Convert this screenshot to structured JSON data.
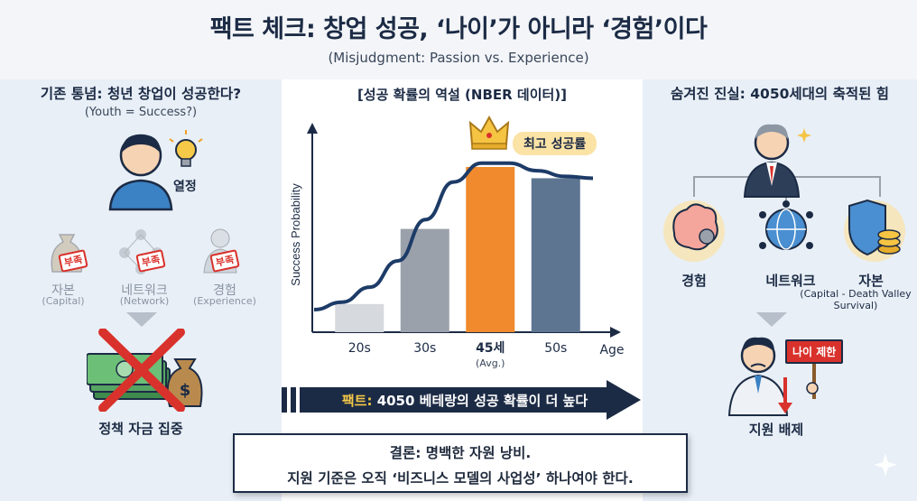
{
  "title": "팩트 체크: 창업 성공, ‘나이’가 아니라 ‘경험’이다",
  "subtitle": "(Misjudgment: Passion vs. Experience)",
  "left": {
    "heading": "기존 통념: 청년 창업이 성공한다?",
    "subheading": "(Youth = Success?)",
    "passion_label": "열정",
    "missing_items": [
      {
        "label": "자본",
        "sub": "(Capital)",
        "badge": "부족"
      },
      {
        "label": "네트워크",
        "sub": "(Network)",
        "badge": "부족"
      },
      {
        "label": "경험",
        "sub": "(Experience)",
        "badge": "부족"
      }
    ],
    "result_label": "정책 자금 집중"
  },
  "chart_data": {
    "type": "bar",
    "title": "[성공 확률의 역설 (NBER 데이터)]",
    "ylabel": "Success Probability",
    "xlabel": "Age",
    "categories": [
      "20s",
      "30s",
      "45세",
      "50s"
    ],
    "category_notes": [
      "",
      "",
      "(Avg.)",
      ""
    ],
    "values": [
      0.15,
      0.55,
      0.88,
      0.82
    ],
    "ylim": [
      0,
      1
    ],
    "curve_x": [
      0,
      0.1,
      0.2,
      0.3,
      0.4,
      0.5,
      0.6,
      0.7,
      0.8,
      0.9,
      1.0
    ],
    "curve_y": [
      0.12,
      0.16,
      0.24,
      0.38,
      0.6,
      0.8,
      0.9,
      0.9,
      0.86,
      0.83,
      0.82
    ],
    "highlight_index": 2,
    "highlight_label": "최고 성공률",
    "colors": {
      "bar1": "#d6d9de",
      "bar2": "#9aa1ab",
      "bar3": "#f08a2c",
      "bar4": "#5e7592",
      "curve": "#1d3b67"
    }
  },
  "banner": {
    "key": "팩트:",
    "text": "4050 베테랑의 성공 확률이 더 높다"
  },
  "right": {
    "heading": "숨겨진 진실: 4050세대의 축적된 힘",
    "assets": [
      {
        "label": "경험",
        "sub": ""
      },
      {
        "label": "네트워크",
        "sub": ""
      },
      {
        "label": "자본",
        "sub": "(Capital - Death Valley Survival)"
      }
    ],
    "sign_label": "나이 제한",
    "result_label": "지원 배제"
  },
  "conclusion": {
    "line1_key": "결론:",
    "line1_text": " 명백한 자원 낭비.",
    "line2": "지원 기준은 오직 ‘비즈니스 모델의 사업성’ 하나여야 한다."
  },
  "colors": {
    "navy": "#1c2b45",
    "orange": "#f08a2c",
    "red": "#d9312b"
  }
}
